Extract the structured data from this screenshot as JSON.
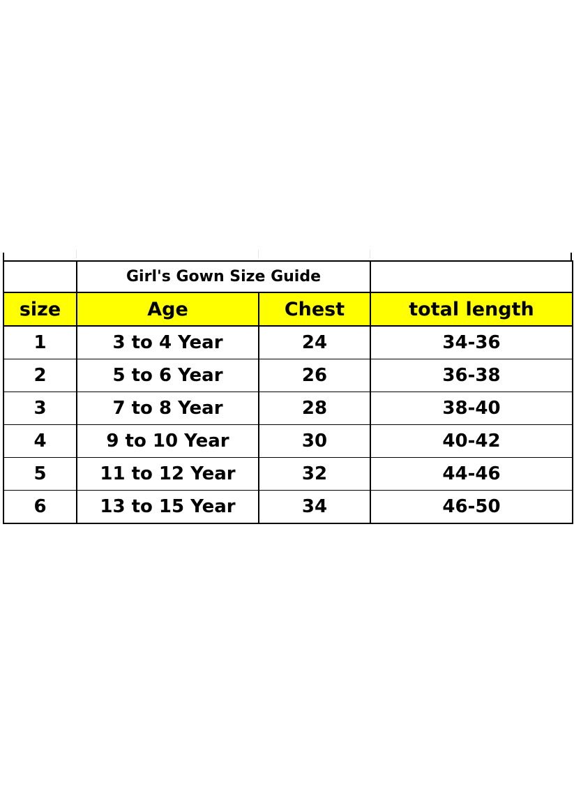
{
  "title": "Girl's Gown Size  Guide",
  "columns": [
    "size",
    "Age",
    "Chest",
    "total length"
  ],
  "rows": [
    [
      "1",
      "3 to 4 Year",
      "24",
      "34-36"
    ],
    [
      "2",
      "5 to 6 Year",
      "26",
      "36-38"
    ],
    [
      "3",
      "7 to 8 Year",
      "28",
      "38-40"
    ],
    [
      "4",
      "9 to 10 Year",
      "30",
      "40-42"
    ],
    [
      "5",
      "11 to 12 Year",
      "32",
      "44-46"
    ],
    [
      "6",
      "13 to 15 Year",
      "34",
      "46-50"
    ]
  ],
  "colors": {
    "header_background": "#ffff00",
    "border": "#000000"
  }
}
